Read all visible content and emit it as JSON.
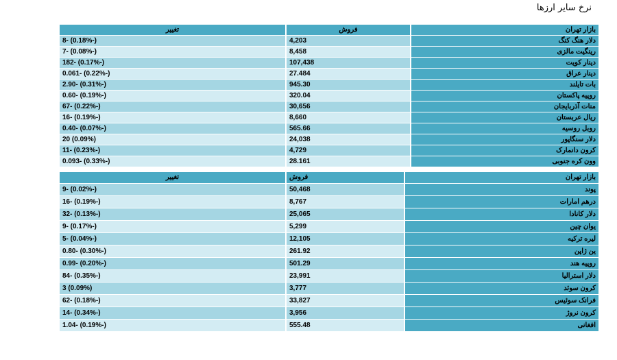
{
  "title": "نرخ سایر ارزها",
  "table1": {
    "headers": {
      "change": "تغییر",
      "sell": "فروش",
      "market": "بازار تهران"
    },
    "rows": [
      {
        "name": "دلار هنگ کنگ",
        "sell": "4,203",
        "change": "8- (0.18%-)"
      },
      {
        "name": "رینگیت مالزی",
        "sell": "8,458",
        "change": "7- (0.08%-)"
      },
      {
        "name": "دینار کویت",
        "sell": "107,438",
        "change": "182- (0.17%-)"
      },
      {
        "name": "دینار عراق",
        "sell": "27.484",
        "change": "0.061- (0.22%-)"
      },
      {
        "name": "بات تایلند",
        "sell": "945.30",
        "change": "2.90- (0.31%-)"
      },
      {
        "name": "روپیه پاکستان",
        "sell": "320.04",
        "change": "0.60- (0.19%-)"
      },
      {
        "name": "منات آذربایجان",
        "sell": "30,656",
        "change": "67- (0.22%-)"
      },
      {
        "name": "ریال عربستان",
        "sell": "8,660",
        "change": "16- (0.19%-)"
      },
      {
        "name": "روبل روسیه",
        "sell": "565.66",
        "change": "0.40- (0.07%-)"
      },
      {
        "name": "دلار سنگاپور",
        "sell": "24,038",
        "change": "20 (0.09%)"
      },
      {
        "name": "کرون دانمارک",
        "sell": "4,729",
        "change": "11- (0.23%-)"
      },
      {
        "name": "وون کره جنوبی",
        "sell": "28.161",
        "change": "0.093- (0.33%-)"
      }
    ]
  },
  "table2": {
    "headers": {
      "change": "تغییر",
      "sell": "فروش",
      "market": "بازار تهران"
    },
    "rows": [
      {
        "name": "پوند",
        "sell": "50,468",
        "change": "9- (0.02%-)"
      },
      {
        "name": "درهم امارات",
        "sell": "8,767",
        "change": "16- (0.19%-)"
      },
      {
        "name": "دلار کانادا",
        "sell": "25,065",
        "change": "32- (0.13%-)"
      },
      {
        "name": "یوان چین",
        "sell": "5,299",
        "change": "9- (0.17%-)"
      },
      {
        "name": "لیره ترکیه",
        "sell": "12,105",
        "change": "5- (0.04%-)"
      },
      {
        "name": "ین ژاپن",
        "sell": "261.92",
        "change": "0.80- (0.30%-)"
      },
      {
        "name": "روپیه هند",
        "sell": "501.29",
        "change": "0.99- (0.20%-)"
      },
      {
        "name": "دلار استرالیا",
        "sell": "23,991",
        "change": "84- (0.35%-)"
      },
      {
        "name": "کرون سوئد",
        "sell": "3,777",
        "change": "3 (0.09%)"
      },
      {
        "name": "فرانک سوئیس",
        "sell": "33,827",
        "change": "62- (0.18%-)"
      },
      {
        "name": "کرون نروژ",
        "sell": "3,956",
        "change": "14- (0.34%-)"
      },
      {
        "name": "افغانی",
        "sell": "555.48",
        "change": "1.04- (0.19%-)"
      }
    ]
  }
}
